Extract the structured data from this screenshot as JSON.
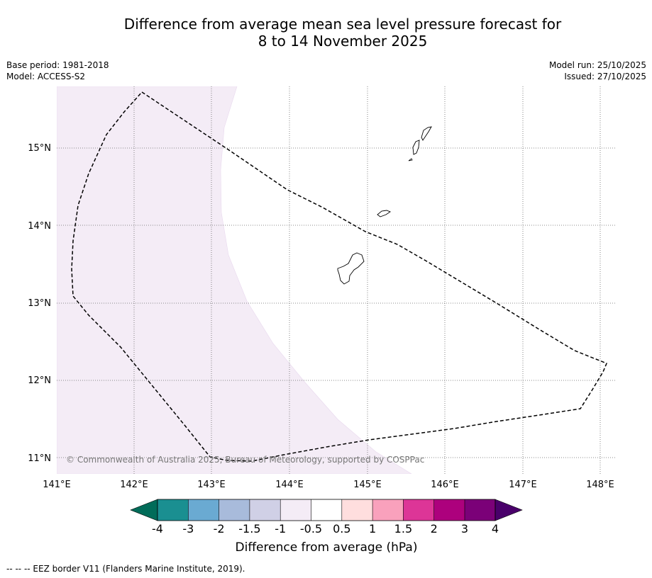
{
  "title": {
    "line1": "Difference from average mean sea level pressure forecast for",
    "line2": "8 to 14 November 2025"
  },
  "meta_left": {
    "base_period": "Base period: 1981-2018",
    "model": "Model: ACCESS-S2"
  },
  "meta_right": {
    "model_run": "Model run: 25/10/2025",
    "issued": "Issued: 27/10/2025"
  },
  "map": {
    "lat_labels": [
      "15°N",
      "14°N",
      "13°N",
      "12°N",
      "11°N"
    ],
    "lon_labels": [
      "141°E",
      "142°E",
      "143°E",
      "144°E",
      "145°E",
      "146°E",
      "147°E",
      "148°E"
    ],
    "copyright": "© Commonwealth of Australia 2025, Bureau of Meteorology, supported by COSPPac",
    "anomaly_fill_color": "#f4ecf6"
  },
  "colorbar": {
    "ticks": [
      "-4",
      "-3",
      "-2",
      "-1.5",
      "-1",
      "-0.5",
      "0.5",
      "1",
      "1.5",
      "2",
      "3",
      "4"
    ],
    "colors": [
      "#1a8f91",
      "#6aaad2",
      "#a8bbdb",
      "#d0d0e6",
      "#f4ecf6",
      "#ffffff",
      "#ffdede",
      "#f9a1bc",
      "#dd3597",
      "#ad017d",
      "#7b0178"
    ],
    "under_color": "#016c59",
    "over_color": "#49006a",
    "label": "Difference from average (hPa)"
  },
  "legend": {
    "eez": "--  --  -- EEZ border V11 (Flanders Marine Institute, 2019)."
  }
}
